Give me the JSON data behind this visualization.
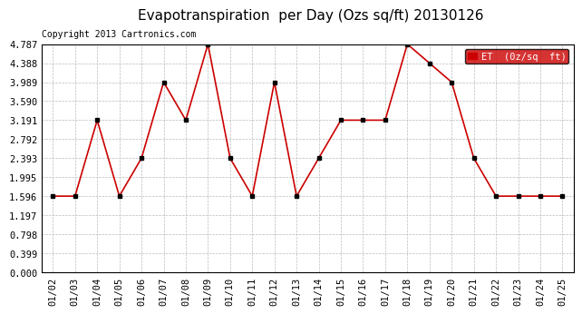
{
  "title": "Evapotranspiration  per Day (Ozs sq/ft) 20130126",
  "copyright": "Copyright 2013 Cartronics.com",
  "legend_label": "ET  (0z/sq  ft)",
  "dates": [
    "01/02",
    "01/03",
    "01/04",
    "01/05",
    "01/06",
    "01/07",
    "01/08",
    "01/09",
    "01/10",
    "01/11",
    "01/12",
    "01/13",
    "01/14",
    "01/15",
    "01/16",
    "01/17",
    "01/18",
    "01/19",
    "01/20",
    "01/21",
    "01/22",
    "01/23",
    "01/24",
    "01/25"
  ],
  "values": [
    1.596,
    1.596,
    3.191,
    1.596,
    2.393,
    3.989,
    3.191,
    4.787,
    2.393,
    1.596,
    3.989,
    1.596,
    2.393,
    3.191,
    3.191,
    3.191,
    4.787,
    4.388,
    3.989,
    2.393,
    1.596,
    1.596,
    1.596,
    1.596
  ],
  "line_color": "#cc0000",
  "marker_color": "#000000",
  "background_color": "#ffffff",
  "grid_color": "#bbbbbb",
  "yticks": [
    0.0,
    0.399,
    0.798,
    1.197,
    1.596,
    1.995,
    2.393,
    2.792,
    3.191,
    3.59,
    3.989,
    4.388,
    4.787
  ],
  "title_fontsize": 11,
  "copyright_fontsize": 7,
  "legend_bg": "#cc0000",
  "legend_text_color": "#ffffff",
  "tick_fontsize": 7.5,
  "ytick_fontsize": 7.5
}
